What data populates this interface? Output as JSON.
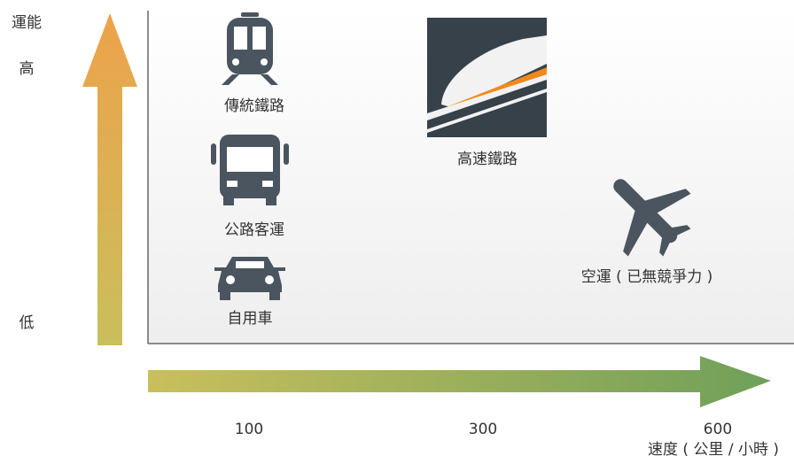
{
  "y_axis": {
    "label": "運能",
    "high": "高",
    "low": "低"
  },
  "x_axis": {
    "ticks": [
      "100",
      "300",
      "600"
    ],
    "label": "速度 ( 公里 / 小時 )"
  },
  "nodes": [
    {
      "label": "傳統鐵路"
    },
    {
      "label": "公路客運"
    },
    {
      "label": "自用車"
    },
    {
      "label": "高速鐵路"
    },
    {
      "label": "空運 ( 已無競爭力 )"
    }
  ]
}
